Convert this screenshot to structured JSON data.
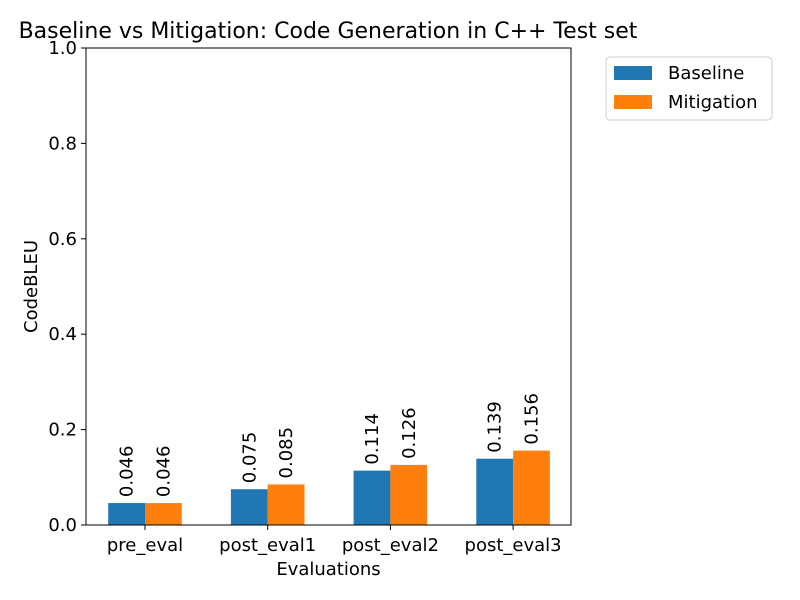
{
  "chart_data": {
    "type": "bar",
    "title": "Baseline vs Mitigation: Code Generation in C++ Test set",
    "xlabel": "Evaluations",
    "ylabel": "CodeBLEU",
    "categories": [
      "pre_eval",
      "post_eval1",
      "post_eval2",
      "post_eval3"
    ],
    "series": [
      {
        "name": "Baseline",
        "color": "#1f77b4",
        "values": [
          0.046,
          0.075,
          0.114,
          0.139
        ],
        "labels": [
          "0.046",
          "0.075",
          "0.114",
          "0.139"
        ]
      },
      {
        "name": "Mitigation",
        "color": "#ff7f0e",
        "values": [
          0.046,
          0.085,
          0.126,
          0.156
        ],
        "labels": [
          "0.046",
          "0.085",
          "0.126",
          "0.156"
        ]
      }
    ],
    "ylim": [
      0,
      1.0
    ],
    "yticks": [
      0.0,
      0.2,
      0.4,
      0.6,
      0.8,
      1.0
    ],
    "ytick_labels": [
      "0.0",
      "0.2",
      "0.4",
      "0.6",
      "0.8",
      "1.0"
    ],
    "grid": false,
    "legend_position": "outside-top-right"
  }
}
